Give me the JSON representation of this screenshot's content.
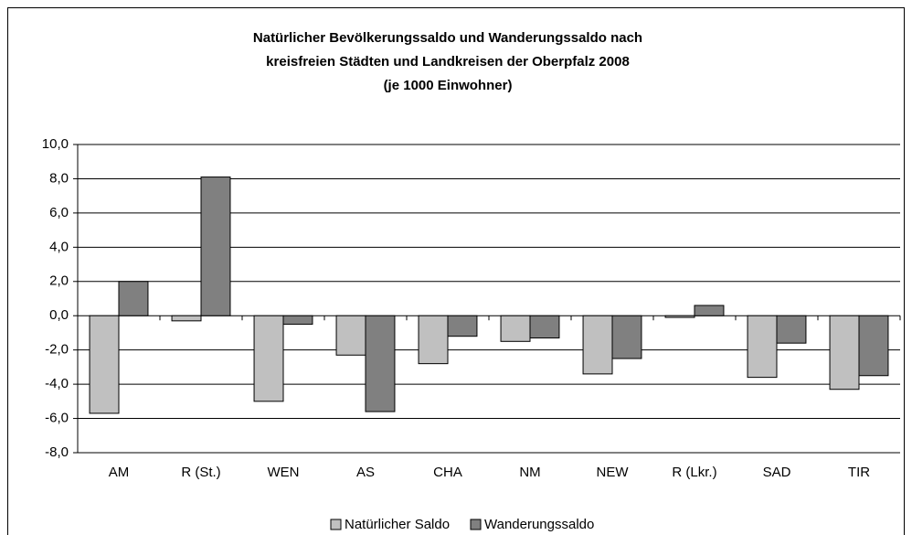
{
  "chart_data": {
    "type": "bar",
    "title": [
      "Natürlicher Bevölkerungssaldo und Wanderungssaldo nach",
      "kreisfreien Städten und Landkreisen der Oberpfalz 2008",
      "(je 1000 Einwohner)"
    ],
    "categories": [
      "AM",
      "R (St.)",
      "WEN",
      "AS",
      "CHA",
      "NM",
      "NEW",
      "R (Lkr.)",
      "SAD",
      "TIR"
    ],
    "series": [
      {
        "name": "Natürlicher Saldo",
        "color": "#c0c0c0",
        "values": [
          -5.7,
          -0.3,
          -5.0,
          -2.3,
          -2.8,
          -1.5,
          -3.4,
          -0.1,
          -3.6,
          -4.3
        ]
      },
      {
        "name": "Wanderungssaldo",
        "color": "#808080",
        "values": [
          2.0,
          8.1,
          -0.5,
          -5.6,
          -1.2,
          -1.3,
          -2.5,
          0.6,
          -1.6,
          -3.5
        ]
      }
    ],
    "ylim": [
      -8,
      10
    ],
    "yticks": [
      {
        "value": -8,
        "label": "-8,0"
      },
      {
        "value": -6,
        "label": "-6,0"
      },
      {
        "value": -4,
        "label": "-4,0"
      },
      {
        "value": -2,
        "label": "-2,0"
      },
      {
        "value": 0,
        "label": "0,0"
      },
      {
        "value": 2,
        "label": "2,0"
      },
      {
        "value": 4,
        "label": "4,0"
      },
      {
        "value": 6,
        "label": "6,0"
      },
      {
        "value": 8,
        "label": "8,0"
      },
      {
        "value": 10,
        "label": "10,0"
      }
    ],
    "grid": true,
    "legend": "bottom"
  }
}
